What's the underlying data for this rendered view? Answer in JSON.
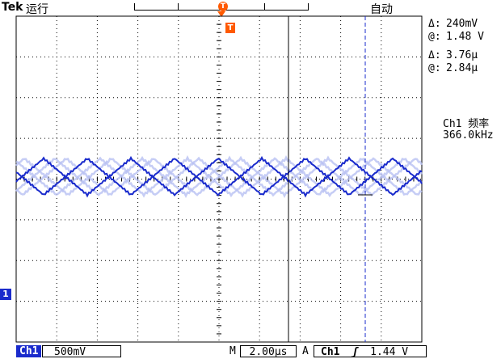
{
  "header": {
    "brand": "Tek",
    "run_state": "运行",
    "trigger_mode": "自动",
    "trigger_marker": "T"
  },
  "cursor_readouts": {
    "amplitude_delta_symbol": "Δ:",
    "amplitude_delta": "240mV",
    "amplitude_at_symbol": "@:",
    "amplitude_at": "1.48 V",
    "time_delta_symbol": "Δ:",
    "time_delta": "3.76μ",
    "time_at_symbol": "@:",
    "time_at": "2.84μ"
  },
  "measurement": {
    "label": "Ch1 频率",
    "value": "366.0kHz"
  },
  "channel_marker": "1",
  "footer": {
    "channel_tag": "Ch1",
    "channel_scale": "500mV",
    "m_label": "M",
    "timebase": "2.00μs",
    "a_label": "A",
    "trigger_source": "Ch1",
    "trigger_slope": "ʃ",
    "trigger_level": "1.44 V"
  },
  "colors": {
    "trace": "#1a2bcc",
    "trace_ghost": "#b8c0f2",
    "trigger": "#ff5a00",
    "cursor": "#1a2bcc"
  }
}
